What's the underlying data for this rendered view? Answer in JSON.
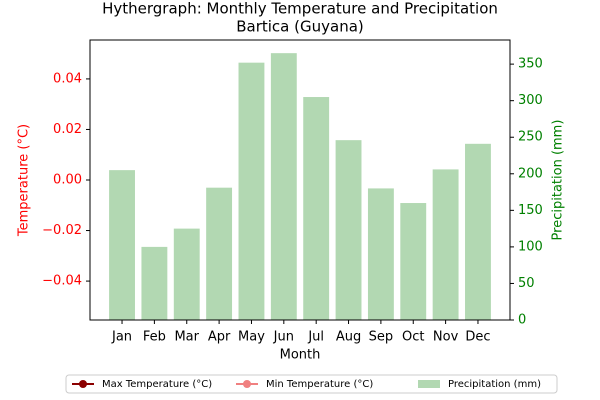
{
  "chart_data": {
    "type": "bar",
    "title": "Hythergraph: Monthly Temperature and Precipitation",
    "subtitle": "Bartica (Guyana)",
    "xlabel": "Month",
    "ylabel": "Temperature (°C)",
    "y2label": "Precipitation (mm)",
    "ylabel_color": "red",
    "y2label_color": "green",
    "categories": [
      "Jan",
      "Feb",
      "Mar",
      "Apr",
      "May",
      "Jun",
      "Jul",
      "Aug",
      "Sep",
      "Oct",
      "Nov",
      "Dec"
    ],
    "series": [
      {
        "name": "Max Temperature (°C)",
        "type": "line",
        "color": "darkred",
        "values": [
          null,
          null,
          null,
          null,
          null,
          null,
          null,
          null,
          null,
          null,
          null,
          null
        ]
      },
      {
        "name": "Min Temperature (°C)",
        "type": "line",
        "color": "lightcoral",
        "values": [
          null,
          null,
          null,
          null,
          null,
          null,
          null,
          null,
          null,
          null,
          null,
          null
        ]
      },
      {
        "name": "Precipitation (mm)",
        "type": "bar",
        "axis": "y2",
        "color": "#b2d8b2",
        "values": [
          205,
          100,
          125,
          181,
          352,
          365,
          305,
          246,
          180,
          160,
          206,
          241
        ]
      }
    ],
    "ylim": [
      -0.0554,
      0.0554
    ],
    "yticks": [
      {
        "value": -0.04,
        "label": "−0.04"
      },
      {
        "value": -0.02,
        "label": "−0.02"
      },
      {
        "value": 0,
        "label": "0.00"
      },
      0.02,
      0.04
    ],
    "y2lim": [
      0,
      383
    ],
    "y2ticks": [
      0,
      50,
      100,
      150,
      200,
      250,
      300,
      350
    ],
    "legend": "lower center"
  }
}
